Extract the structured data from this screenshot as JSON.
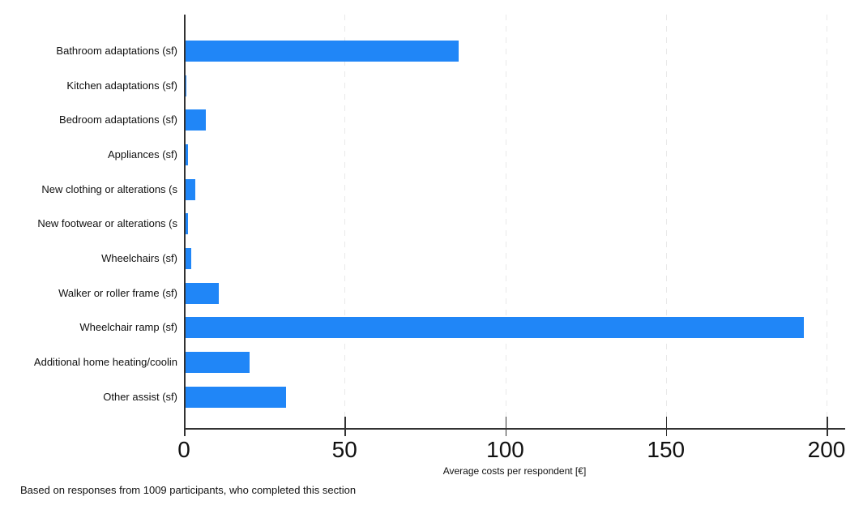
{
  "chart_data": {
    "type": "bar",
    "orientation": "horizontal",
    "title": "",
    "xlabel": "Average costs per respondent [€]",
    "ylabel": "",
    "categories": [
      "Bathroom adaptations (sf)",
      "Kitchen adaptations (sf)",
      "Bedroom adaptations (sf)",
      "Appliances (sf)",
      "New clothing or alterations (s",
      "New footwear or alterations (s",
      "Wheelchairs (sf)",
      "Walker or roller frame (sf)",
      "Wheelchair ramp (sf)",
      "Additional home heating/coolin",
      "Other assist (sf)"
    ],
    "values": [
      85,
      0.4,
      6.5,
      1,
      3.2,
      1,
      2,
      10.5,
      192.5,
      20,
      31.3
    ],
    "xticks": [
      0,
      50,
      100,
      150,
      200
    ],
    "xlim": [
      0,
      206
    ],
    "grid": "vertical dashed gridlines at x ticks, light gray",
    "legend": "none",
    "bar_color": "#2086F7",
    "axis_color": "#333333",
    "note": "Based on responses from 1009 participants, who completed this section"
  }
}
